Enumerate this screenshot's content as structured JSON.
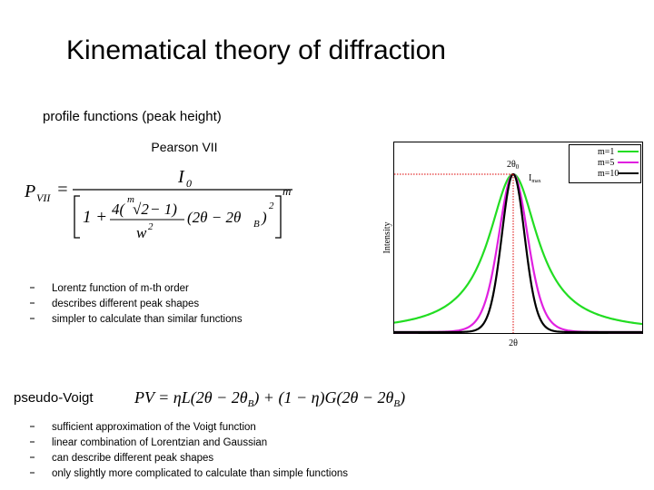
{
  "header": {
    "title": "Kinematical theory of diffraction"
  },
  "subtitle": "profile functions (peak height)",
  "pearson": {
    "heading": "Pearson VII",
    "formula": {
      "lhs": "P",
      "lhs_sub": "VII",
      "eq": "=",
      "num": "I",
      "num_sub": "0",
      "one": "1 +",
      "inner_num": "4(",
      "root_index": "m",
      "root": "√2",
      "inner_tail": "− 1)",
      "inner_den": "w",
      "inner_den_sup": "2",
      "diff": "(2θ − 2θ",
      "diff_sub": "B",
      "diff_close": ")",
      "diff_sup": "2",
      "power": "m"
    },
    "bullets": [
      "Lorentz function of m-th order",
      "describes different peak shapes",
      "simpler to calculate than similar functions"
    ]
  },
  "figure": {
    "legend": [
      "m=1",
      "m=5",
      "m=10"
    ],
    "y_label": "Intensity",
    "top_label": "2θ",
    "top_label_sub": "0",
    "max_label": "I",
    "max_label_sub": "max",
    "bottom_label": "2θ"
  },
  "pseudo_voigt": {
    "heading": "pseudo-Voigt",
    "formula": {
      "a": "PV = ηL(2θ − 2θ",
      "a_sub": "B",
      "b": ") + (1 − η)G(2θ − 2θ",
      "b_sub": "B",
      "c": ")"
    },
    "bullets": [
      "sufficient approximation of the Voigt function",
      "linear combination of Lorentzian and Gaussian",
      "can describe different peak shapes",
      "only slightly more complicated to calculate than simple functions"
    ]
  }
}
